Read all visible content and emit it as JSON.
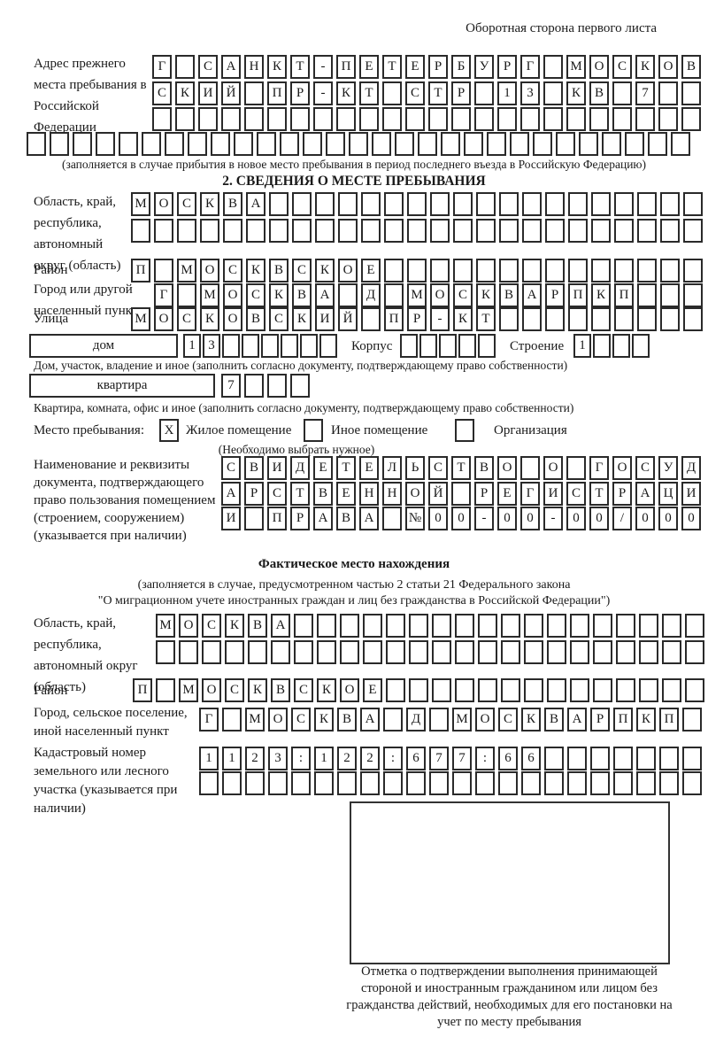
{
  "colors": {
    "ink": "#1a1a1a",
    "paper": "#ffffff"
  },
  "page_note": "Оборотная сторона первого листа",
  "prev_address": {
    "label": "Адрес прежнего места пребывания в Российской Федерации",
    "rows": [
      [
        "Г",
        "",
        "С",
        "А",
        "Н",
        "К",
        "Т",
        "-",
        "П",
        "Е",
        "Т",
        "Е",
        "Р",
        "Б",
        "У",
        "Р",
        "Г",
        "",
        "М",
        "О",
        "С",
        "К",
        "О",
        "В"
      ],
      [
        "С",
        "К",
        "И",
        "Й",
        "",
        "П",
        "Р",
        "-",
        "К",
        "Т",
        "",
        "С",
        "Т",
        "Р",
        "",
        "1",
        "3",
        "",
        "К",
        "В",
        "",
        "7",
        "",
        ""
      ],
      [
        "",
        "",
        "",
        "",
        "",
        "",
        "",
        "",
        "",
        "",
        "",
        "",
        "",
        "",
        "",
        "",
        "",
        "",
        "",
        "",
        "",
        "",
        "",
        ""
      ],
      [
        "",
        "",
        "",
        "",
        "",
        "",
        "",
        "",
        "",
        "",
        "",
        "",
        "",
        "",
        "",
        "",
        "",
        "",
        "",
        "",
        "",
        "",
        "",
        "",
        "",
        "",
        "",
        "",
        ""
      ]
    ],
    "note": "(заполняется в случае прибытия в новое место пребывания в период последнего въезда в Российскую Федерацию)"
  },
  "section2": {
    "title": "2. СВЕДЕНИЯ О МЕСТЕ ПРЕБЫВАНИЯ",
    "region": {
      "label": "Область, край, республика, автономный округ (область)",
      "rows": [
        [
          "М",
          "О",
          "С",
          "К",
          "В",
          "А",
          "",
          "",
          "",
          "",
          "",
          "",
          "",
          "",
          "",
          "",
          "",
          "",
          "",
          "",
          "",
          "",
          "",
          "",
          ""
        ],
        [
          "",
          "",
          "",
          "",
          "",
          "",
          "",
          "",
          "",
          "",
          "",
          "",
          "",
          "",
          "",
          "",
          "",
          "",
          "",
          "",
          "",
          "",
          "",
          "",
          ""
        ]
      ]
    },
    "district": {
      "label": "Район",
      "cells": [
        "П",
        "",
        "М",
        "О",
        "С",
        "К",
        "В",
        "С",
        "К",
        "О",
        "Е",
        "",
        "",
        "",
        "",
        "",
        "",
        "",
        "",
        "",
        "",
        "",
        "",
        "",
        ""
      ]
    },
    "city": {
      "label": "Город или другой населенный пункт",
      "cells": [
        "Г",
        "",
        "М",
        "О",
        "С",
        "К",
        "В",
        "А",
        "",
        "Д",
        "",
        "М",
        "О",
        "С",
        "К",
        "В",
        "А",
        "Р",
        "П",
        "К",
        "П",
        "",
        "",
        ""
      ]
    },
    "street": {
      "label": "Улица",
      "cells": [
        "М",
        "О",
        "С",
        "К",
        "О",
        "В",
        "С",
        "К",
        "И",
        "Й",
        "",
        "П",
        "Р",
        "-",
        "К",
        "Т",
        "",
        "",
        "",
        "",
        "",
        "",
        "",
        "",
        ""
      ]
    },
    "house": {
      "box_label": "дом",
      "cells": [
        "1",
        "3",
        "",
        "",
        "",
        "",
        "",
        ""
      ],
      "korpus_label": "Корпус",
      "korpus_cells": [
        "",
        "",
        "",
        "",
        ""
      ],
      "stroenie_label": "Строение",
      "stroenie_cells": [
        "1",
        "",
        "",
        ""
      ],
      "note": "Дом, участок, владение и иное (заполнить согласно документу, подтверждающему право собственности)"
    },
    "apartment": {
      "box_label": "квартира",
      "cells": [
        "7",
        "",
        "",
        ""
      ],
      "note": "Квартира, комната, офис и иное (заполнить согласно документу, подтверждающему право собственности)"
    },
    "stay_type": {
      "label": "Место пребывания:",
      "options": [
        {
          "label": "Жилое помещение",
          "checked": "X"
        },
        {
          "label": "Иное помещение",
          "checked": ""
        },
        {
          "label": "Организация",
          "checked": ""
        }
      ],
      "note": "(Необходимо выбрать нужное)"
    },
    "document": {
      "label": "Наименование и реквизиты документа, подтверждающего право пользования помещением (строением, сооружением) (указывается при наличии)",
      "rows": [
        [
          "С",
          "В",
          "И",
          "Д",
          "Е",
          "Т",
          "Е",
          "Л",
          "Ь",
          "С",
          "Т",
          "В",
          "О",
          "",
          "О",
          "",
          "Г",
          "О",
          "С",
          "У",
          "Д"
        ],
        [
          "А",
          "Р",
          "С",
          "Т",
          "В",
          "Е",
          "Н",
          "Н",
          "О",
          "Й",
          "",
          "Р",
          "Е",
          "Г",
          "И",
          "С",
          "Т",
          "Р",
          "А",
          "Ц",
          "И"
        ],
        [
          "И",
          "",
          "П",
          "Р",
          "А",
          "В",
          "А",
          "",
          "№",
          "0",
          "0",
          "-",
          "0",
          "0",
          "-",
          "0",
          "0",
          "/",
          "0",
          "0",
          "0"
        ]
      ]
    }
  },
  "actual_location": {
    "title": "Фактическое место нахождения",
    "note_line1": "(заполняется в случае, предусмотренном частью 2 статьи 21 Федерального закона",
    "note_line2": "\"О миграционном учете иностранных граждан и лиц без гражданства в Российской Федерации\")",
    "region": {
      "label": "Область, край, республика, автономный округ (область)",
      "rows": [
        [
          "М",
          "О",
          "С",
          "К",
          "В",
          "А",
          "",
          "",
          "",
          "",
          "",
          "",
          "",
          "",
          "",
          "",
          "",
          "",
          "",
          "",
          "",
          "",
          "",
          ""
        ],
        [
          "",
          "",
          "",
          "",
          "",
          "",
          "",
          "",
          "",
          "",
          "",
          "",
          "",
          "",
          "",
          "",
          "",
          "",
          "",
          "",
          "",
          "",
          "",
          ""
        ]
      ]
    },
    "district": {
      "label": "Район",
      "cells": [
        "П",
        "",
        "М",
        "О",
        "С",
        "К",
        "В",
        "С",
        "К",
        "О",
        "Е",
        "",
        "",
        "",
        "",
        "",
        "",
        "",
        "",
        "",
        "",
        "",
        "",
        "",
        ""
      ]
    },
    "city": {
      "label": "Город, сельское поселение, иной населенный пункт",
      "cells": [
        "Г",
        "",
        "М",
        "О",
        "С",
        "К",
        "В",
        "А",
        "",
        "Д",
        "",
        "М",
        "О",
        "С",
        "К",
        "В",
        "А",
        "Р",
        "П",
        "К",
        "П",
        ""
      ]
    },
    "cadastral": {
      "label": "Кадастровый номер земельного или лесного участка (указывается при наличии)",
      "rows": [
        [
          "1",
          "1",
          "2",
          "3",
          ":",
          "1",
          "2",
          "2",
          ":",
          "6",
          "7",
          "7",
          ":",
          "6",
          "6",
          "",
          "",
          "",
          "",
          "",
          "",
          ""
        ],
        [
          "",
          "",
          "",
          "",
          "",
          "",
          "",
          "",
          "",
          "",
          "",
          "",
          "",
          "",
          "",
          "",
          "",
          "",
          "",
          "",
          "",
          ""
        ]
      ]
    },
    "stamp_note": "Отметка о подтверждении выполнения принимающей стороной и иностранным гражданином или лицом без гражданства действий, необходимых для его постановки на учет по месту пребывания"
  }
}
